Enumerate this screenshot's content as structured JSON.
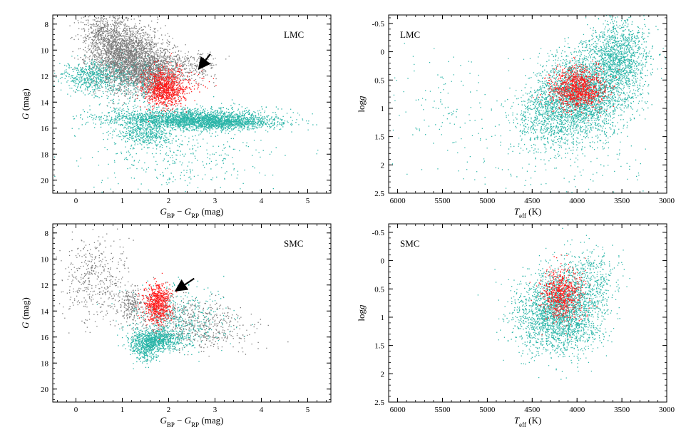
{
  "colors": {
    "gray": "#7a7a7a",
    "red": "#ff1a1a",
    "teal": "#2ab5a8",
    "axis": "#000000"
  },
  "figure": {
    "panels": [
      {
        "id": "cmd_lmc",
        "label": "LMC",
        "xlabel": "G_BP − G_RP (mag)",
        "ylabel": "G (mag)",
        "arrow": true
      },
      {
        "id": "hr_lmc",
        "label": "LMC",
        "xlabel": "T_eff (K)",
        "ylabel": "log g"
      },
      {
        "id": "cmd_smc",
        "label": "SMC",
        "xlabel": "G_BP − G_RP (mag)",
        "ylabel": "G (mag)",
        "arrow": true
      },
      {
        "id": "hr_smc",
        "label": "SMC",
        "xlabel": "T_eff (K)",
        "ylabel": "log g"
      }
    ]
  },
  "chart_data": [
    {
      "type": "scatter",
      "title": "LMC",
      "xlabel": "G_BP − G_RP (mag)",
      "ylabel": "G (mag)",
      "xlim": [
        -0.5,
        5.5
      ],
      "ylim": [
        21,
        7.3
      ],
      "y_inverted": true,
      "xticks": [
        0,
        1,
        2,
        3,
        4,
        5
      ],
      "yticks": [
        8,
        10,
        12,
        14,
        16,
        18,
        20
      ],
      "grid": false,
      "series": [
        {
          "color": "gray",
          "clusters": [
            {
              "cx": 1.0,
              "cy": 10.5,
              "sx": 0.35,
              "sy": 1.3,
              "n": 2300
            },
            {
              "cx": 1.6,
              "cy": 11.5,
              "sx": 0.3,
              "sy": 1.0,
              "n": 1200
            },
            {
              "cx": 0.6,
              "cy": 8.5,
              "sx": 0.25,
              "sy": 0.8,
              "n": 400
            },
            {
              "cx": 2.3,
              "cy": 11.2,
              "sx": 0.4,
              "sy": 0.6,
              "n": 300
            }
          ]
        },
        {
          "color": "teal",
          "clusters": [
            {
              "cx": 0.3,
              "cy": 12.0,
              "sx": 0.3,
              "sy": 0.6,
              "n": 500
            },
            {
              "cx": 2.4,
              "cy": 15.2,
              "sx": 0.9,
              "sy": 0.35,
              "n": 2000
            },
            {
              "cx": 3.1,
              "cy": 15.6,
              "sx": 0.6,
              "sy": 0.25,
              "n": 1000
            },
            {
              "cx": 1.5,
              "cy": 16.3,
              "sx": 0.3,
              "sy": 0.5,
              "n": 450
            },
            {
              "cx": 2.2,
              "cy": 17.5,
              "sx": 1.0,
              "sy": 1.8,
              "n": 450
            },
            {
              "cx": 1.2,
              "cy": 12.5,
              "sx": 0.5,
              "sy": 1.0,
              "n": 300
            }
          ]
        },
        {
          "color": "red",
          "clusters": [
            {
              "cx": 1.9,
              "cy": 12.9,
              "sx": 0.22,
              "sy": 0.75,
              "n": 1000
            },
            {
              "cx": 2.3,
              "cy": 12.3,
              "sx": 0.3,
              "sy": 0.6,
              "n": 60
            }
          ]
        }
      ],
      "annotations": [
        {
          "type": "arrow",
          "from": [
            2.9,
            10.3
          ],
          "to": [
            2.65,
            11.45
          ]
        }
      ]
    },
    {
      "type": "scatter",
      "title": "LMC",
      "xlabel": "T_eff (K)",
      "ylabel": "log g",
      "xlim": [
        6100,
        3000
      ],
      "ylim": [
        2.5,
        -0.65
      ],
      "x_inverted": true,
      "y_inverted": true,
      "xticks": [
        6000,
        5500,
        5000,
        4500,
        4000,
        3500,
        3000
      ],
      "yticks": [
        -0.5,
        0,
        0.5,
        1,
        1.5,
        2,
        2.5
      ],
      "ytick_labels": [
        "-0.5",
        "0",
        "0.5",
        "1",
        "1.5",
        "2",
        "2.5"
      ],
      "grid": false,
      "series": [
        {
          "color": "teal",
          "clusters": [
            {
              "cx": 3950,
              "cy": 0.75,
              "sx": 250,
              "sy": 0.35,
              "n": 2400
            },
            {
              "cx": 3550,
              "cy": 0.1,
              "sx": 180,
              "sy": 0.35,
              "n": 1400
            },
            {
              "cx": 4300,
              "cy": 1.15,
              "sx": 220,
              "sy": 0.3,
              "n": 800
            },
            {
              "cx": 5500,
              "cy": 1.1,
              "sx": 350,
              "sy": 0.5,
              "n": 120
            },
            {
              "cx": 4200,
              "cy": 1.8,
              "sx": 500,
              "sy": 0.5,
              "n": 200
            }
          ]
        },
        {
          "color": "red",
          "clusters": [
            {
              "cx": 4000,
              "cy": 0.65,
              "sx": 150,
              "sy": 0.18,
              "n": 1100
            }
          ]
        }
      ]
    },
    {
      "type": "scatter",
      "title": "SMC",
      "xlabel": "G_BP − G_RP (mag)",
      "ylabel": "G (mag)",
      "xlim": [
        -0.5,
        5.5
      ],
      "ylim": [
        21,
        7.3
      ],
      "y_inverted": true,
      "xticks": [
        0,
        1,
        2,
        3,
        4,
        5
      ],
      "yticks": [
        8,
        10,
        12,
        14,
        16,
        18,
        20
      ],
      "grid": false,
      "series": [
        {
          "color": "gray",
          "clusters": [
            {
              "cx": 0.4,
              "cy": 11.5,
              "sx": 0.35,
              "sy": 1.7,
              "n": 450
            },
            {
              "cx": 1.2,
              "cy": 13.4,
              "sx": 0.12,
              "sy": 0.6,
              "n": 200
            },
            {
              "cx": 2.3,
              "cy": 14.6,
              "sx": 0.6,
              "sy": 0.8,
              "n": 500
            },
            {
              "cx": 2.9,
              "cy": 16.0,
              "sx": 0.5,
              "sy": 0.5,
              "n": 150
            }
          ]
        },
        {
          "color": "teal",
          "clusters": [
            {
              "cx": 1.7,
              "cy": 16.2,
              "sx": 0.3,
              "sy": 0.4,
              "n": 900
            },
            {
              "cx": 1.5,
              "cy": 17.0,
              "sx": 0.15,
              "sy": 0.5,
              "n": 250
            },
            {
              "cx": 2.2,
              "cy": 14.5,
              "sx": 0.5,
              "sy": 1.2,
              "n": 450
            }
          ]
        },
        {
          "color": "red",
          "clusters": [
            {
              "cx": 1.75,
              "cy": 13.4,
              "sx": 0.15,
              "sy": 0.75,
              "n": 700
            }
          ]
        }
      ],
      "annotations": [
        {
          "type": "arrow",
          "from": [
            2.55,
            11.5
          ],
          "to": [
            2.15,
            12.45
          ]
        }
      ]
    },
    {
      "type": "scatter",
      "title": "SMC",
      "xlabel": "T_eff (K)",
      "ylabel": "log g",
      "xlim": [
        6100,
        3000
      ],
      "ylim": [
        2.5,
        -0.65
      ],
      "x_inverted": true,
      "y_inverted": true,
      "xticks": [
        6000,
        5500,
        5000,
        4500,
        4000,
        3500,
        3000
      ],
      "yticks": [
        -0.5,
        0,
        0.5,
        1,
        1.5,
        2,
        2.5
      ],
      "ytick_labels": [
        "-0.5",
        "0",
        "0.5",
        "1",
        "1.5",
        "2",
        "2.5"
      ],
      "grid": false,
      "series": [
        {
          "color": "teal",
          "clusters": [
            {
              "cx": 4200,
              "cy": 0.9,
              "sx": 230,
              "sy": 0.35,
              "n": 2500
            },
            {
              "cx": 3900,
              "cy": 0.35,
              "sx": 180,
              "sy": 0.3,
              "n": 400
            }
          ]
        },
        {
          "color": "red",
          "clusters": [
            {
              "cx": 4170,
              "cy": 0.6,
              "sx": 110,
              "sy": 0.22,
              "n": 700
            }
          ]
        }
      ]
    }
  ]
}
